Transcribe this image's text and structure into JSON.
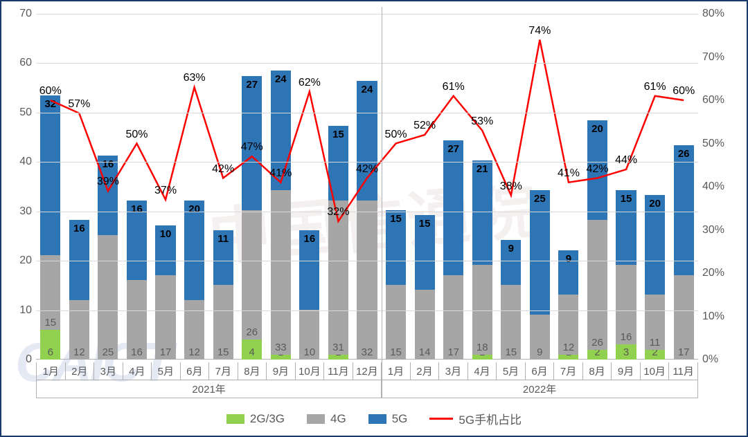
{
  "chart": {
    "type": "stacked-bar-with-line",
    "background_color": "#ffffff",
    "border_color": "#1a3a6e",
    "grid_color": "#d9d9d9",
    "axis_label_color": "#595959",
    "watermark_text": "中国信通院",
    "watermark_logo": "CAICT",
    "left_axis": {
      "min": 0,
      "max": 70,
      "step": 10,
      "fontsize": 16
    },
    "right_axis": {
      "min": 0,
      "max": 80,
      "step": 10,
      "suffix": "%",
      "fontsize": 16
    },
    "years": [
      {
        "label": "2021年",
        "span": 12
      },
      {
        "label": "2022年",
        "span": 11
      }
    ],
    "categories": [
      "1月",
      "2月",
      "3月",
      "4月",
      "5月",
      "6月",
      "7月",
      "8月",
      "9月",
      "10月",
      "11月",
      "12月",
      "1月",
      "2月",
      "3月",
      "4月",
      "5月",
      "6月",
      "7月",
      "8月",
      "9月",
      "10月",
      "11月"
    ],
    "series": {
      "g2g3": {
        "label": "2G/3G",
        "color": "#92d050",
        "values": [
          6,
          0,
          0,
          0,
          0,
          0,
          0,
          4,
          1,
          0,
          1,
          0,
          0,
          0,
          0,
          1,
          0,
          0,
          1,
          2,
          3,
          2,
          0
        ]
      },
      "g4": {
        "label": "4G",
        "color": "#a6a6a6",
        "values": [
          15,
          12,
          25,
          16,
          17,
          12,
          15,
          26,
          33,
          10,
          31,
          32,
          15,
          14,
          17,
          18,
          15,
          9,
          12,
          26,
          16,
          11,
          17
        ]
      },
      "g5": {
        "label": "5G",
        "color": "#2e75b6",
        "values": [
          32,
          16,
          16,
          16,
          10,
          20,
          11,
          27,
          24,
          16,
          15,
          24,
          15,
          15,
          27,
          21,
          9,
          25,
          9,
          20,
          15,
          20,
          26
        ]
      }
    },
    "line": {
      "label": "5G手机占比",
      "color": "#ff0000",
      "width": 2.5,
      "values_pct": [
        60,
        57,
        39,
        50,
        37,
        63,
        42,
        47,
        41,
        62,
        32,
        42,
        50,
        52,
        61,
        53,
        38,
        74,
        41,
        42,
        44,
        61,
        60
      ],
      "show_pct_suffix": "%"
    },
    "bar_width_ratio": 0.7,
    "label_fontsize": 15,
    "pct_fontsize": 16,
    "legend_fontsize": 17
  }
}
